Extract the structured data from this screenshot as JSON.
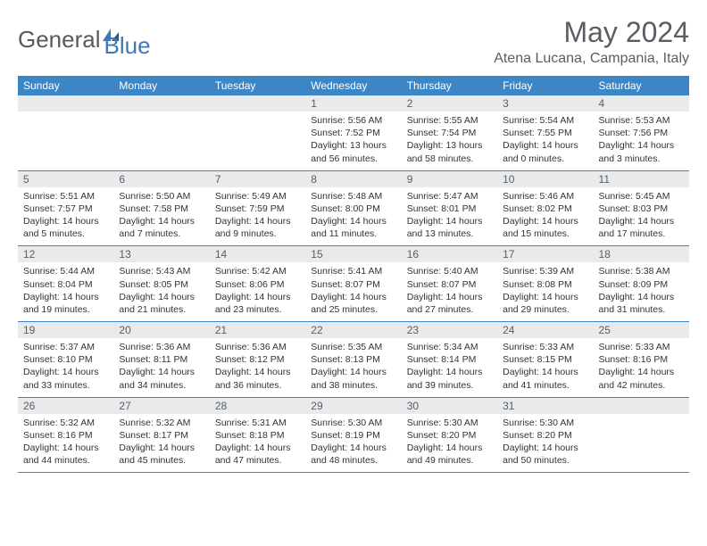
{
  "brand": {
    "name_part1": "General",
    "name_part2": "Blue"
  },
  "title": "May 2024",
  "location": "Atena Lucana, Campania, Italy",
  "weekdays": [
    "Sunday",
    "Monday",
    "Tuesday",
    "Wednesday",
    "Thursday",
    "Friday",
    "Saturday"
  ],
  "colors": {
    "header_bg": "#3d86c6",
    "header_text": "#ffffff",
    "band_bg": "#e8eaec",
    "text_muted": "#5a5e62",
    "logo_blue": "#3a7ab8",
    "body_text": "#333333",
    "page_bg": "#ffffff"
  },
  "typography": {
    "title_fontsize": 32,
    "location_fontsize": 16,
    "weekday_fontsize": 12,
    "daynum_fontsize": 12,
    "content_fontsize": 10.5
  },
  "grid": {
    "rows": 5,
    "cols": 7,
    "leading_blanks": 3,
    "days_in_month": 31
  },
  "days": [
    {
      "n": "1",
      "sr": "5:56 AM",
      "ss": "7:52 PM",
      "dl": "13 hours and 56 minutes."
    },
    {
      "n": "2",
      "sr": "5:55 AM",
      "ss": "7:54 PM",
      "dl": "13 hours and 58 minutes."
    },
    {
      "n": "3",
      "sr": "5:54 AM",
      "ss": "7:55 PM",
      "dl": "14 hours and 0 minutes."
    },
    {
      "n": "4",
      "sr": "5:53 AM",
      "ss": "7:56 PM",
      "dl": "14 hours and 3 minutes."
    },
    {
      "n": "5",
      "sr": "5:51 AM",
      "ss": "7:57 PM",
      "dl": "14 hours and 5 minutes."
    },
    {
      "n": "6",
      "sr": "5:50 AM",
      "ss": "7:58 PM",
      "dl": "14 hours and 7 minutes."
    },
    {
      "n": "7",
      "sr": "5:49 AM",
      "ss": "7:59 PM",
      "dl": "14 hours and 9 minutes."
    },
    {
      "n": "8",
      "sr": "5:48 AM",
      "ss": "8:00 PM",
      "dl": "14 hours and 11 minutes."
    },
    {
      "n": "9",
      "sr": "5:47 AM",
      "ss": "8:01 PM",
      "dl": "14 hours and 13 minutes."
    },
    {
      "n": "10",
      "sr": "5:46 AM",
      "ss": "8:02 PM",
      "dl": "14 hours and 15 minutes."
    },
    {
      "n": "11",
      "sr": "5:45 AM",
      "ss": "8:03 PM",
      "dl": "14 hours and 17 minutes."
    },
    {
      "n": "12",
      "sr": "5:44 AM",
      "ss": "8:04 PM",
      "dl": "14 hours and 19 minutes."
    },
    {
      "n": "13",
      "sr": "5:43 AM",
      "ss": "8:05 PM",
      "dl": "14 hours and 21 minutes."
    },
    {
      "n": "14",
      "sr": "5:42 AM",
      "ss": "8:06 PM",
      "dl": "14 hours and 23 minutes."
    },
    {
      "n": "15",
      "sr": "5:41 AM",
      "ss": "8:07 PM",
      "dl": "14 hours and 25 minutes."
    },
    {
      "n": "16",
      "sr": "5:40 AM",
      "ss": "8:07 PM",
      "dl": "14 hours and 27 minutes."
    },
    {
      "n": "17",
      "sr": "5:39 AM",
      "ss": "8:08 PM",
      "dl": "14 hours and 29 minutes."
    },
    {
      "n": "18",
      "sr": "5:38 AM",
      "ss": "8:09 PM",
      "dl": "14 hours and 31 minutes."
    },
    {
      "n": "19",
      "sr": "5:37 AM",
      "ss": "8:10 PM",
      "dl": "14 hours and 33 minutes."
    },
    {
      "n": "20",
      "sr": "5:36 AM",
      "ss": "8:11 PM",
      "dl": "14 hours and 34 minutes."
    },
    {
      "n": "21",
      "sr": "5:36 AM",
      "ss": "8:12 PM",
      "dl": "14 hours and 36 minutes."
    },
    {
      "n": "22",
      "sr": "5:35 AM",
      "ss": "8:13 PM",
      "dl": "14 hours and 38 minutes."
    },
    {
      "n": "23",
      "sr": "5:34 AM",
      "ss": "8:14 PM",
      "dl": "14 hours and 39 minutes."
    },
    {
      "n": "24",
      "sr": "5:33 AM",
      "ss": "8:15 PM",
      "dl": "14 hours and 41 minutes."
    },
    {
      "n": "25",
      "sr": "5:33 AM",
      "ss": "8:16 PM",
      "dl": "14 hours and 42 minutes."
    },
    {
      "n": "26",
      "sr": "5:32 AM",
      "ss": "8:16 PM",
      "dl": "14 hours and 44 minutes."
    },
    {
      "n": "27",
      "sr": "5:32 AM",
      "ss": "8:17 PM",
      "dl": "14 hours and 45 minutes."
    },
    {
      "n": "28",
      "sr": "5:31 AM",
      "ss": "8:18 PM",
      "dl": "14 hours and 47 minutes."
    },
    {
      "n": "29",
      "sr": "5:30 AM",
      "ss": "8:19 PM",
      "dl": "14 hours and 48 minutes."
    },
    {
      "n": "30",
      "sr": "5:30 AM",
      "ss": "8:20 PM",
      "dl": "14 hours and 49 minutes."
    },
    {
      "n": "31",
      "sr": "5:30 AM",
      "ss": "8:20 PM",
      "dl": "14 hours and 50 minutes."
    }
  ],
  "labels": {
    "sunrise_prefix": "Sunrise: ",
    "sunset_prefix": "Sunset: ",
    "daylight_prefix": "Daylight: "
  }
}
